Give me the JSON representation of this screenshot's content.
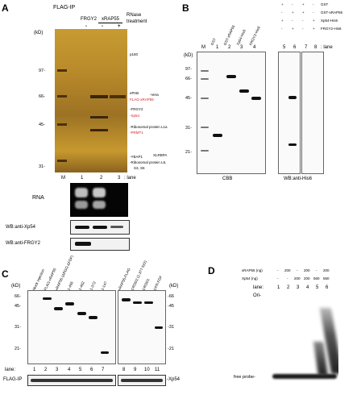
{
  "panels": {
    "A": {
      "letter": "A",
      "title": "FLAG-IP",
      "header_rnase": "RNase",
      "header_treatment": "treatment",
      "col_frgy2": "FRGY2",
      "col_xrap55": "xRAP55",
      "minus1": "-",
      "minus2": "-",
      "plus": "+",
      "kd": "(kD)",
      "mw": [
        "97-",
        "66-",
        "45-",
        "31-"
      ],
      "right_labels": [
        "p150",
        "ePAB",
        "-Vera",
        "FLAG-xRAP55",
        "-FRGY2",
        "-Xp54",
        "-Ribosomal protein L1a",
        "-PRMT1",
        "-YBAP1",
        "XLRBPA",
        "-Ribosomal protein L8,",
        "S3, S6"
      ],
      "lane_M": "M",
      "lane_1": "1",
      "lane_2": "2",
      "lane_3": "3",
      "lane_suffix": ": lane",
      "rna": "RNA",
      "wb1": "WB:anti-Xp54",
      "wb2": "WB:anti-FRGY2"
    },
    "B": {
      "letter": "B",
      "legend": [
        "GST",
        "GST-xRAP55",
        "Xp54-His6",
        "FRGY2-His6"
      ],
      "legend_signs": [
        [
          "+",
          "-",
          "+",
          "-"
        ],
        [
          "-",
          "+",
          "+",
          "-"
        ],
        [
          "+",
          "-",
          "-",
          "+"
        ],
        [
          "-",
          "+",
          "-",
          "+"
        ]
      ],
      "kd": "(kD)",
      "mw": [
        "97-",
        "66-",
        "45-",
        "31-",
        "21-"
      ],
      "col_labels": [
        "GST",
        "GST-xRAP55",
        "Xp54-His6",
        "FRGY2-His6"
      ],
      "lanes_left": [
        "M",
        "1",
        "2",
        "3",
        "4"
      ],
      "lanes_right": [
        "5",
        "6",
        "7",
        "8"
      ],
      "lane_suffix": ": lane",
      "cbb": "CBB",
      "wb": "WB:anti-His6"
    },
    "C": {
      "letter": "C",
      "kd": "(kD)",
      "mw_left": [
        "66-",
        "45-",
        "31-",
        "21-"
      ],
      "mw_right": [
        "-66",
        "-45",
        "-31",
        "-21"
      ],
      "col_labels": [
        "Mock injection",
        "FLAG-xRAP55",
        "xRAP55 (ΔRGG-ΔFDF)",
        "1-466",
        "1-482",
        "1-372",
        "1-147",
        "xRAP55-FLAG",
        "CRDD2 (1-377-522)",
        "CRDD1",
        "CFR-FDF"
      ],
      "lane_word": "lane:",
      "lanes": [
        "1",
        "2",
        "3",
        "4",
        "5",
        "6",
        "7",
        "8",
        "9",
        "10",
        "11"
      ],
      "flag_ip": "FLAG-IP",
      "xp54": "-Xp54"
    },
    "D": {
      "letter": "D",
      "row1_label": "xRAP55 (ng)",
      "row1_vals": [
        "-",
        "200",
        "-",
        "200",
        "-",
        "200"
      ],
      "row2_label": "Xp54 (ng)",
      "row2_vals": [
        "-",
        "-",
        "200",
        "200",
        "560",
        "560"
      ],
      "lane_word": "lane:",
      "lanes": [
        "1",
        "2",
        "3",
        "4",
        "5",
        "6"
      ],
      "ori": "Ori-",
      "free_probe": "free probe-"
    }
  }
}
